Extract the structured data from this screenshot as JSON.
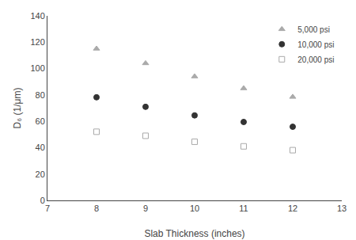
{
  "chart_data": {
    "type": "scatter",
    "x": [
      8,
      9,
      10,
      11,
      12
    ],
    "series": [
      {
        "name": "5,000 psi",
        "color": "#aaaaaa",
        "marker": "triangle-up",
        "values": [
          115.06,
          104.0,
          94.0,
          85.0,
          78.49
        ]
      },
      {
        "name": "10,000 psi",
        "color": "#333333",
        "marker": "circle",
        "values": [
          78.23,
          71.0,
          64.5,
          59.5,
          55.88
        ]
      },
      {
        "name": "20,000 psi",
        "color": "#aaaaaa",
        "marker": "square-open",
        "values": [
          52.07,
          49.0,
          44.5,
          41.0,
          38.1
        ]
      }
    ],
    "xlabel": "Slab Thickness (inches)",
    "ylabel": "D₆ (1/μm)",
    "xlim": [
      7,
      13
    ],
    "ylim": [
      0,
      140
    ],
    "xticks": [
      7,
      8,
      9,
      10,
      11,
      12,
      13
    ],
    "yticks": [
      0,
      20,
      40,
      60,
      80,
      100,
      120,
      140
    ],
    "legend": "upper right",
    "grid": false
  }
}
